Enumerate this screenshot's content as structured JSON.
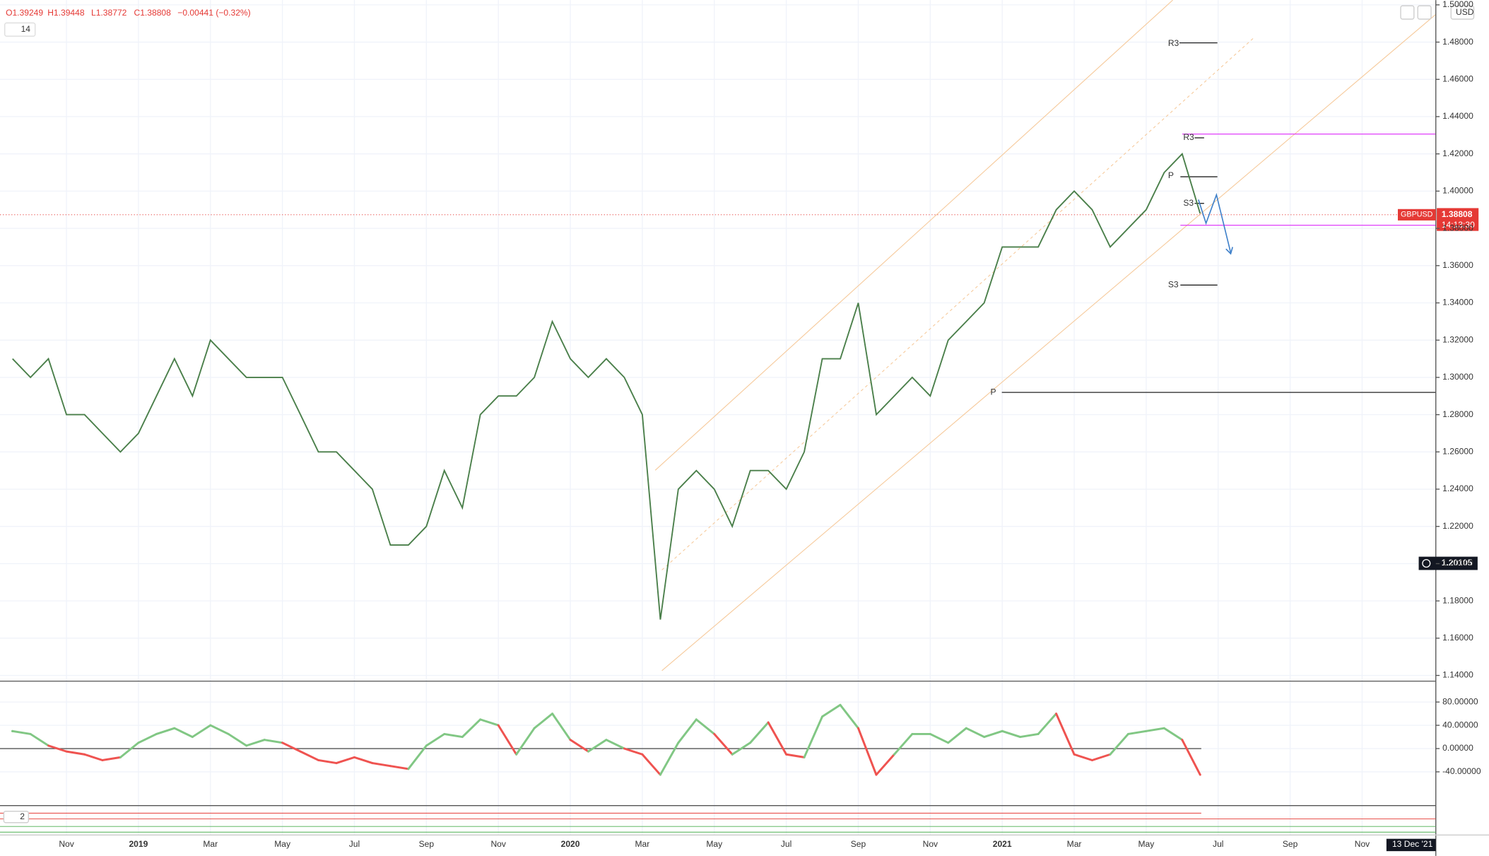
{
  "header": {
    "open": "O1.39249",
    "high": "H1.39448",
    "low": "L1.38772",
    "close": "C1.38808",
    "change": "−0.00441 (−0.32%)",
    "length": "14",
    "currency": "USD"
  },
  "badges": {
    "symbol": "GBPUSD",
    "price": "1.38808",
    "countdown": "14:13:30",
    "crosshair": "1.20105",
    "date": "13 Dec '21",
    "pane3": "2"
  },
  "annotations": [
    "R3",
    "R3",
    "P",
    "S3",
    "S3",
    "P"
  ],
  "chart_data": [
    {
      "type": "line",
      "color": "#4a7f4a",
      "categories": [
        null,
        null,
        null,
        "Nov",
        null,
        null,
        null,
        "2019",
        null,
        null,
        null,
        "Mar",
        null,
        null,
        null,
        "May",
        null,
        null,
        null,
        "Jul",
        null,
        null,
        null,
        "Sep",
        null,
        null,
        null,
        "Nov",
        null,
        null,
        null,
        "2020",
        null,
        null,
        null,
        "Mar",
        null,
        null,
        null,
        "May",
        null,
        null,
        null,
        "Jul",
        null,
        null,
        null,
        "Sep",
        null,
        null,
        null,
        "Nov",
        null,
        null,
        null,
        "2021",
        null,
        null,
        null,
        "Mar",
        null,
        null,
        null,
        "May",
        null,
        null,
        null,
        "Jul",
        null,
        null,
        null,
        "Sep",
        null,
        null,
        null,
        "Nov"
      ],
      "values": [
        1.31,
        1.3,
        1.31,
        1.28,
        1.28,
        1.27,
        1.26,
        1.27,
        1.29,
        1.31,
        1.29,
        1.32,
        1.31,
        1.3,
        1.3,
        1.3,
        1.28,
        1.26,
        1.26,
        1.25,
        1.24,
        1.21,
        1.21,
        1.22,
        1.25,
        1.23,
        1.28,
        1.29,
        1.29,
        1.3,
        1.33,
        1.31,
        1.3,
        1.31,
        1.3,
        1.28,
        1.17,
        1.24,
        1.25,
        1.24,
        1.22,
        1.25,
        1.25,
        1.24,
        1.26,
        1.31,
        1.31,
        1.34,
        1.28,
        1.29,
        1.3,
        1.29,
        1.32,
        1.33,
        1.34,
        1.37,
        1.37,
        1.37,
        1.39,
        1.4,
        1.39,
        1.37,
        1.38,
        1.39,
        1.41,
        1.42,
        1.388,
        null,
        null,
        null,
        null,
        null,
        null,
        null,
        null,
        null
      ],
      "ylim": [
        1.14,
        1.5
      ],
      "yticks": [
        {
          "value": 1.14,
          "label": "1.14000"
        },
        {
          "value": 1.16,
          "label": "1.16000"
        },
        {
          "value": 1.18,
          "label": "1.18000"
        },
        {
          "value": 1.2,
          "label": "1.20000"
        },
        {
          "value": 1.22,
          "label": "1.22000"
        },
        {
          "value": 1.24,
          "label": "1.24000"
        },
        {
          "value": 1.26,
          "label": "1.26000"
        },
        {
          "value": 1.28,
          "label": "1.28000"
        },
        {
          "value": 1.3,
          "label": "1.30000"
        },
        {
          "value": 1.32,
          "label": "1.32000"
        },
        {
          "value": 1.34,
          "label": "1.34000"
        },
        {
          "value": 1.36,
          "label": "1.36000"
        },
        {
          "value": 1.38,
          "label": "1.38000"
        },
        {
          "value": 1.4,
          "label": "1.40000"
        },
        {
          "value": 1.42,
          "label": "1.42000"
        },
        {
          "value": 1.44,
          "label": "1.44000"
        },
        {
          "value": 1.46,
          "label": "1.46000"
        },
        {
          "value": 1.48,
          "label": "1.48000"
        },
        {
          "value": 1.5,
          "label": "1.50000"
        }
      ],
      "grid": true
    },
    {
      "type": "oscillator",
      "pos_color": "#81c784",
      "neg_color": "#ef5350",
      "values": [
        30,
        25,
        5,
        -5,
        -10,
        -20,
        -15,
        10,
        25,
        35,
        20,
        40,
        25,
        5,
        15,
        10,
        -5,
        -20,
        -25,
        -15,
        -25,
        -30,
        -35,
        5,
        25,
        20,
        50,
        40,
        -10,
        35,
        60,
        15,
        -5,
        15,
        0,
        -10,
        -45,
        10,
        50,
        25,
        -10,
        10,
        45,
        -10,
        -15,
        55,
        75,
        35,
        -45,
        -10,
        25,
        25,
        10,
        35,
        20,
        30,
        20,
        25,
        60,
        -10,
        -20,
        -10,
        25,
        30,
        35,
        15,
        -45
      ],
      "ylim": [
        -98,
        114
      ],
      "yticks": [
        {
          "value": 80,
          "label": "80.00000"
        },
        {
          "value": 40,
          "label": "40.00000"
        },
        {
          "value": 0,
          "label": "0.00000"
        },
        {
          "value": -40,
          "label": "-40.00000"
        }
      ],
      "grid": true
    }
  ]
}
